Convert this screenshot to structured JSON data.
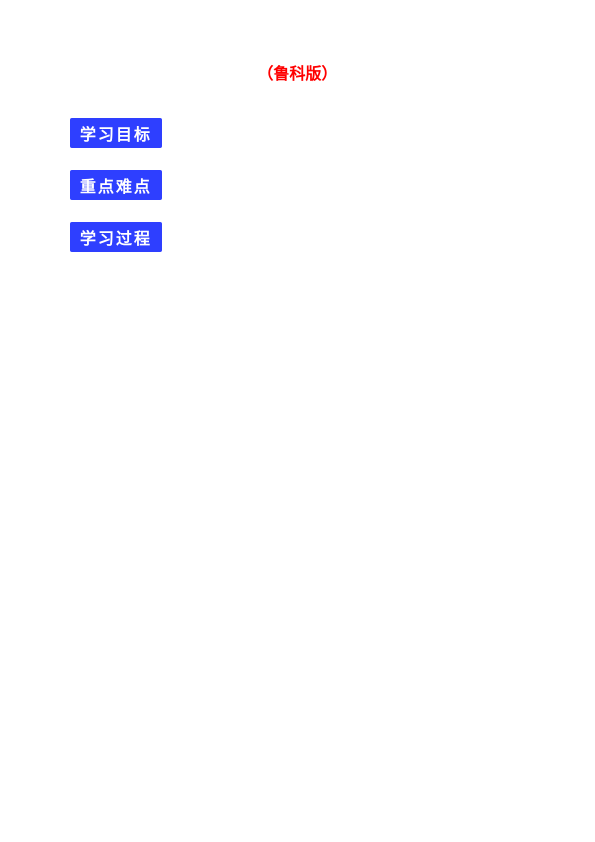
{
  "title_prefix": "",
  "title_highlight": "（鲁科版）",
  "subtitle": "",
  "badges": {
    "goals": "学习目标",
    "keypoints": "重点难点",
    "process": "学习过程"
  },
  "sections": {
    "goals_text": "",
    "keypoints_text": "",
    "process_text": ""
  }
}
